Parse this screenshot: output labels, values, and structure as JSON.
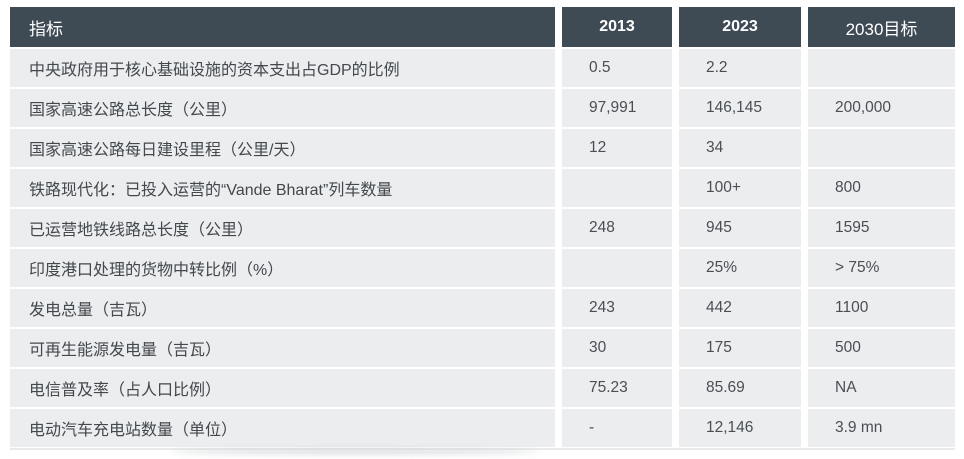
{
  "colors": {
    "header_bg": "#3f4b54",
    "header_text": "#ffffff",
    "row_bg": "#ebedef",
    "body_text": "#43484c",
    "page_bg": "#ffffff"
  },
  "chart_data": {
    "type": "table",
    "title": "",
    "columns": [
      "指标",
      "2013",
      "2023",
      "2030目标"
    ],
    "rows": [
      [
        "中央政府用于核心基础设施的资本支出占GDP的比例",
        "0.5",
        "2.2",
        ""
      ],
      [
        "国家高速公路总长度（公里）",
        "97,991",
        "146,145",
        "200,000"
      ],
      [
        "国家高速公路每日建设里程（公里/天）",
        "12",
        "34",
        ""
      ],
      [
        "铁路现代化：已投入运营的“Vande Bharat”列车数量",
        "",
        "100+",
        "800"
      ],
      [
        "已运营地铁线路总长度（公里）",
        "248",
        "945",
        "1595"
      ],
      [
        "印度港口处理的货物中转比例（%）",
        "",
        "25%",
        "> 75%"
      ],
      [
        "发电总量（吉瓦）",
        "243",
        "442",
        "1100"
      ],
      [
        "可再生能源发电量（吉瓦）",
        "30",
        "175",
        "500"
      ],
      [
        "电信普及率（占人口比例）",
        "75.23",
        "85.69",
        "NA"
      ],
      [
        "电动汽车充电站数量（单位）",
        "-",
        "12,146",
        "3.9 mn"
      ]
    ]
  },
  "table": {
    "header": {
      "indicator": "指标",
      "c2013": "2013",
      "c2023": "2023",
      "c2030": "2030目标"
    },
    "rows": [
      {
        "indicator": "中央政府用于核心基础设施的资本支出占GDP的比例",
        "y2013": "0.5",
        "y2023": "2.2",
        "y2030": ""
      },
      {
        "indicator": "国家高速公路总长度（公里）",
        "y2013": "97,991",
        "y2023": "146,145",
        "y2030": "200,000"
      },
      {
        "indicator": "国家高速公路每日建设里程（公里/天）",
        "y2013": "12",
        "y2023": "34",
        "y2030": ""
      },
      {
        "indicator": "铁路现代化：已投入运营的“Vande Bharat”列车数量",
        "y2013": "",
        "y2023": "100+",
        "y2030": "800"
      },
      {
        "indicator": "已运营地铁线路总长度（公里）",
        "y2013": "248",
        "y2023": "945",
        "y2030": "1595"
      },
      {
        "indicator": "印度港口处理的货物中转比例（%）",
        "y2013": "",
        "y2023": "25%",
        "y2030": "> 75%"
      },
      {
        "indicator": "发电总量（吉瓦）",
        "y2013": "243",
        "y2023": "442",
        "y2030": "1100"
      },
      {
        "indicator": "可再生能源发电量（吉瓦）",
        "y2013": "30",
        "y2023": "175",
        "y2030": "500"
      },
      {
        "indicator": "电信普及率（占人口比例）",
        "y2013": "75.23",
        "y2023": "85.69",
        "y2030": "NA"
      },
      {
        "indicator": "电动汽车充电站数量（单位）",
        "y2013": "-",
        "y2023": "12,146",
        "y2030": "3.9 mn"
      }
    ]
  }
}
